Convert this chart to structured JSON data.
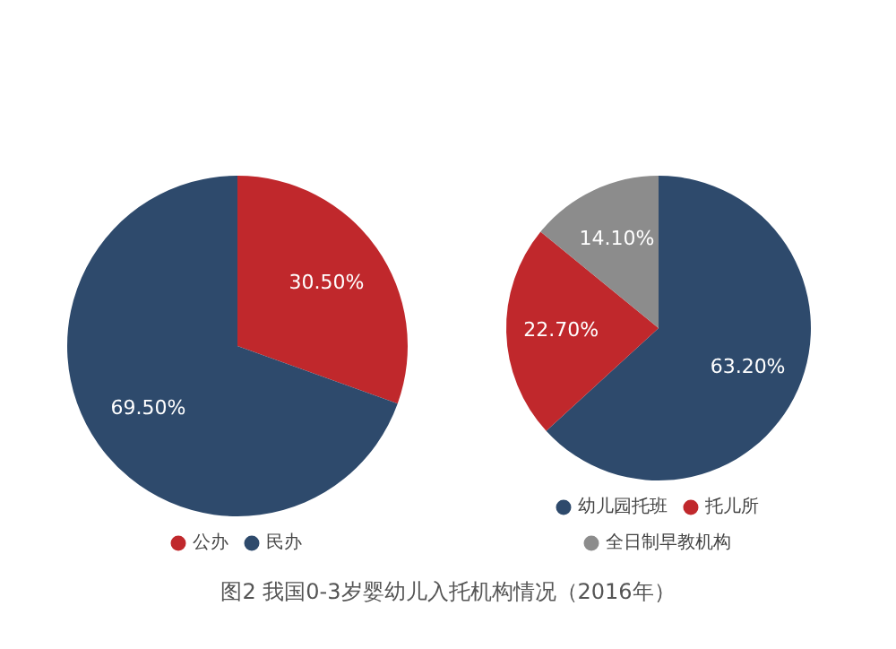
{
  "chart_data": [
    {
      "type": "pie",
      "categories": [
        "公办",
        "民办"
      ],
      "values": [
        30.5,
        69.5
      ],
      "colors": [
        "#c0282c",
        "#2e4a6c"
      ],
      "value_labels": [
        "30.50%",
        "69.50%"
      ],
      "legend": "bottom",
      "annotations": [
        "图2   我国0-3岁婴幼儿入托机构情况（2016年）"
      ]
    },
    {
      "type": "pie",
      "categories": [
        "幼儿园托班",
        "托儿所",
        "全日制早教机构"
      ],
      "values": [
        63.2,
        22.7,
        14.1
      ],
      "colors": [
        "#2e4a6c",
        "#c0282c",
        "#8c8c8c"
      ],
      "value_labels": [
        "63.20%",
        "22.70%",
        "14.10%"
      ],
      "legend": "bottom"
    }
  ]
}
